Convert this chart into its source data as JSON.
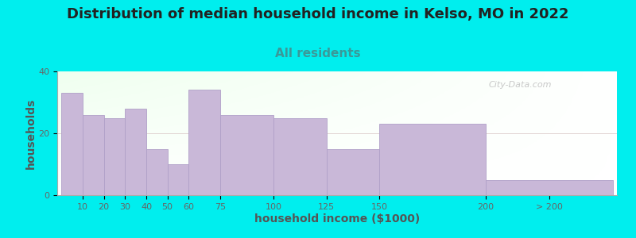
{
  "title": "Distribution of median household income in Kelso, MO in 2022",
  "subtitle": "All residents",
  "xlabel": "household income ($1000)",
  "ylabel": "households",
  "background_color": "#00EEEE",
  "bar_color": "#c9b8d8",
  "bar_edgecolor": "#b0a0c8",
  "watermark": "City-Data.com",
  "bar_labels": [
    "10",
    "20",
    "30",
    "40",
    "50",
    "60",
    "75",
    "100",
    "125",
    "150",
    "200",
    "> 200"
  ],
  "bar_values": [
    33,
    26,
    25,
    28,
    15,
    10,
    34,
    26,
    25,
    15,
    23,
    5
  ],
  "bar_lefts": [
    0,
    10,
    20,
    30,
    40,
    50,
    60,
    75,
    100,
    125,
    150,
    200
  ],
  "bar_rights": [
    10,
    20,
    30,
    40,
    50,
    60,
    75,
    100,
    125,
    150,
    200,
    260
  ],
  "tick_positions": [
    10,
    20,
    30,
    40,
    50,
    60,
    75,
    100,
    125,
    150,
    200,
    230
  ],
  "xlim": [
    -2,
    262
  ],
  "ylim": [
    0,
    40
  ],
  "yticks": [
    0,
    20,
    40
  ],
  "title_fontsize": 13,
  "subtitle_fontsize": 11,
  "axis_label_fontsize": 10,
  "tick_fontsize": 8,
  "subtitle_color": "#3a9999"
}
